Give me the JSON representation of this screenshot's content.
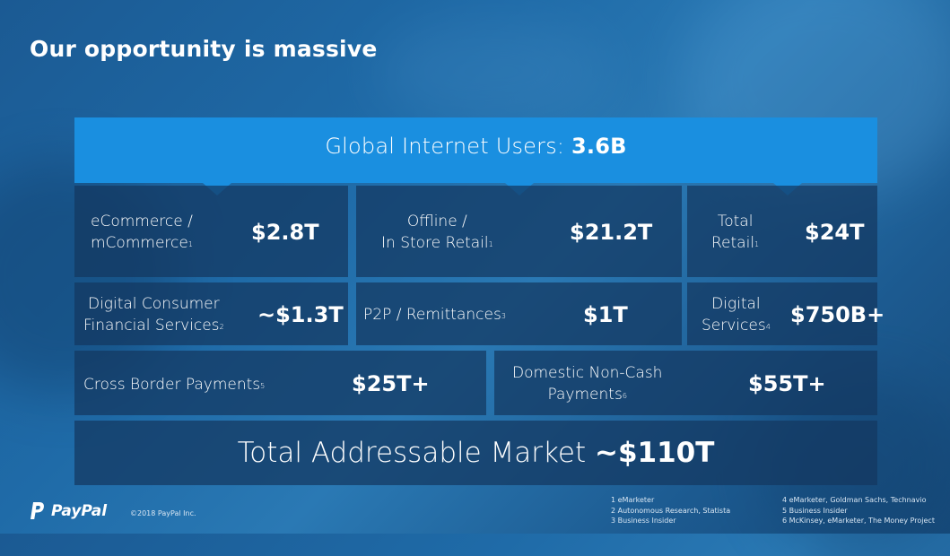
{
  "title": "Our opportunity is massive",
  "banner": {
    "label": "Global Internet Users: ",
    "value": "3.6B"
  },
  "row1": [
    {
      "label_l1": "eCommerce /",
      "label_l2": "mCommerce",
      "sup": "1",
      "value": "$2.8T"
    },
    {
      "label_l1": "Offline /",
      "label_l2": "In Store Retail",
      "sup": "1",
      "value": "$21.2T"
    },
    {
      "label_l1": "Total",
      "label_l2": "Retail",
      "sup": "1",
      "value": "$24T"
    }
  ],
  "row2": [
    {
      "label_l1": "Digital Consumer",
      "label_l2": "Financial Services",
      "sup": "2",
      "value": "~$1.3T"
    },
    {
      "label_l1": "P2P / Remittances",
      "sup": "3",
      "value": "$1T"
    },
    {
      "label_l1": "Digital",
      "label_l2": "Services",
      "sup": "4",
      "value": "$750B+"
    }
  ],
  "row3": [
    {
      "label_l1": "Cross Border Payments",
      "sup": "5",
      "value": "$25T+"
    },
    {
      "label_l1": "Domestic Non-Cash",
      "label_l2": "Payments",
      "sup": "6",
      "value": "$55T+"
    }
  ],
  "total": {
    "label": "Total Addressable Market ",
    "value": "~$110T"
  },
  "footer": {
    "brand": "PayPal",
    "copyright": "©2018 PayPal Inc.",
    "notes_left": [
      "1 eMarketer",
      "2 Autonomous Research, Statista",
      "3 Business Insider"
    ],
    "notes_right": [
      "4 eMarketer, Goldman Sachs, Technavio",
      "5 Business Insider",
      "6 McKinsey, eMarketer, The Money Project"
    ]
  },
  "colors": {
    "banner": "#1a8fe0",
    "cell": "#14375f",
    "background": "#1f6ba8"
  }
}
